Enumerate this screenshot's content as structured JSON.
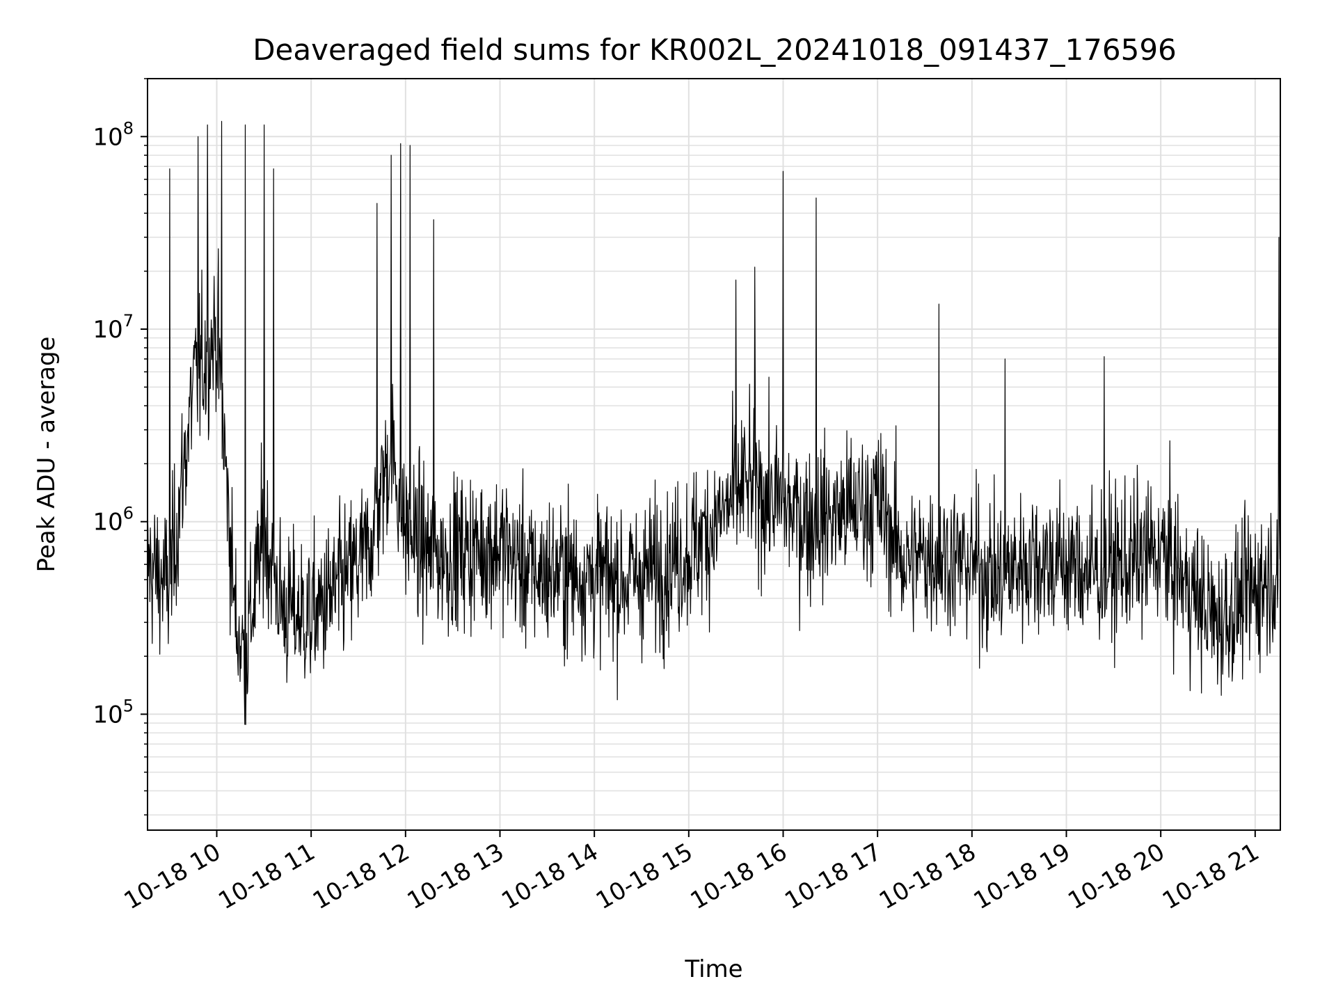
{
  "chart_data": {
    "type": "line",
    "title": "Deaveraged field sums for KR002L_20241018_091437_176596",
    "xlabel": "Time",
    "ylabel": "Peak ADU - average",
    "yscale": "log",
    "ylim": [
      25000,
      200000000
    ],
    "xlim": [
      "2024-10-18 09:16",
      "2024-10-18 21:16"
    ],
    "grid": true,
    "line_color": "#000000",
    "grid_color": "#e0e0e0",
    "x_tick_labels": [
      "10-18 10",
      "10-18 11",
      "10-18 12",
      "10-18 13",
      "10-18 14",
      "10-18 15",
      "10-18 16",
      "10-18 17",
      "10-18 18",
      "10-18 19",
      "10-18 20",
      "10-18 21"
    ],
    "x_tick_hours": [
      10,
      11,
      12,
      13,
      14,
      15,
      16,
      17,
      18,
      19,
      20,
      21
    ],
    "y_tick_exponents": [
      5,
      6,
      7,
      8
    ],
    "y_tick_base": "10",
    "series": [
      {
        "x_hours": [
          9.27,
          9.5,
          9.75,
          10.0,
          10.2,
          10.3,
          10.5,
          10.7,
          11.0,
          11.3,
          11.6,
          11.85,
          12.0,
          12.3,
          12.6,
          13.0,
          13.3,
          13.6,
          14.0,
          14.3,
          14.6,
          15.0,
          15.3,
          15.6,
          16.0,
          16.3,
          16.6,
          17.0,
          17.3,
          17.6,
          18.0,
          18.3,
          18.6,
          19.0,
          19.3,
          19.6,
          20.0,
          20.3,
          20.6,
          21.0,
          21.27
        ],
        "values": [
          600000,
          450000,
          5000000,
          10000000,
          300000,
          200000,
          900000,
          350000,
          320000,
          450000,
          700000,
          2500000,
          900000,
          650000,
          700000,
          750000,
          550000,
          550000,
          520000,
          500000,
          550000,
          700000,
          1000000,
          1600000,
          1200000,
          1000000,
          1100000,
          1300000,
          600000,
          700000,
          600000,
          500000,
          650000,
          600000,
          550000,
          600000,
          700000,
          450000,
          300000,
          450000,
          600000
        ],
        "spike_hours": [
          9.5,
          9.8,
          9.9,
          10.05,
          10.3,
          10.5,
          10.6,
          11.7,
          11.85,
          11.95,
          12.05,
          12.3,
          15.5,
          15.7,
          16.0,
          16.35,
          17.65,
          18.35,
          19.4,
          21.25
        ],
        "spike_values": [
          68000000,
          100000000,
          115000000,
          120000000,
          115000000,
          115000000,
          68000000,
          45000000,
          80000000,
          92000000,
          90000000,
          37000000,
          18000000,
          21000000,
          66000000,
          48000000,
          13500000,
          7000000,
          7200000,
          30000000
        ]
      }
    ]
  }
}
